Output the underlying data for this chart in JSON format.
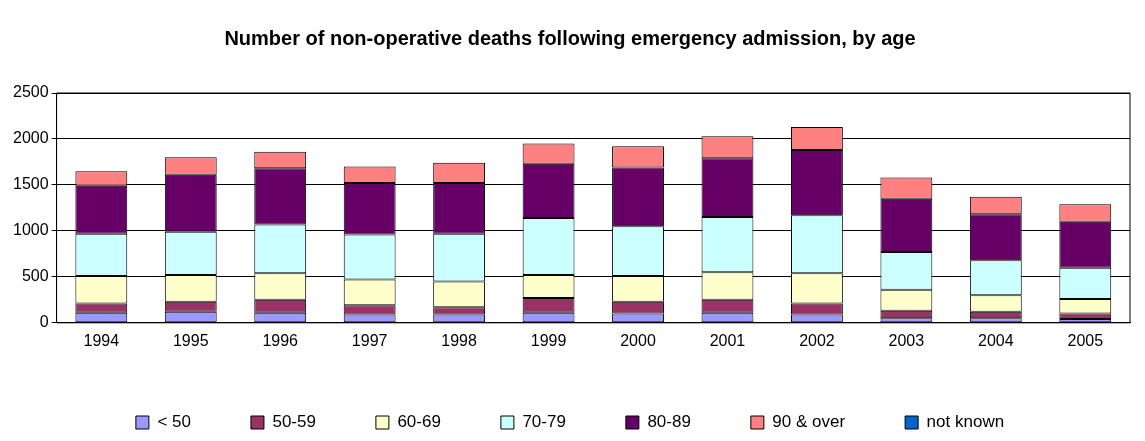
{
  "chart_data": {
    "type": "bar",
    "title": "Number of non-operative deaths following emergency admission, by age",
    "stacked": true,
    "categories": [
      "1994",
      "1995",
      "1996",
      "1997",
      "1998",
      "1999",
      "2000",
      "2001",
      "2002",
      "2003",
      "2004",
      "2005"
    ],
    "series": [
      {
        "name": "< 50",
        "color": "#9999ff",
        "values": [
          110,
          120,
          110,
          90,
          90,
          110,
          100,
          110,
          90,
          50,
          50,
          40
        ]
      },
      {
        "name": "50-59",
        "color": "#993366",
        "values": [
          100,
          110,
          140,
          100,
          80,
          160,
          130,
          140,
          120,
          80,
          70,
          60
        ]
      },
      {
        "name": "60-69",
        "color": "#ffffcc",
        "values": [
          300,
          290,
          290,
          280,
          280,
          250,
          280,
          300,
          330,
          230,
          180,
          160
        ]
      },
      {
        "name": "70-79",
        "color": "#ccffff",
        "values": [
          460,
          470,
          530,
          490,
          520,
          620,
          540,
          600,
          630,
          410,
          380,
          340
        ]
      },
      {
        "name": "80-89",
        "color": "#660066",
        "values": [
          520,
          620,
          610,
          560,
          550,
          590,
          640,
          640,
          710,
          580,
          500,
          500
        ]
      },
      {
        "name": "90 & over",
        "color": "#ff8080",
        "values": [
          160,
          190,
          180,
          180,
          220,
          220,
          230,
          240,
          250,
          230,
          190,
          190
        ]
      },
      {
        "name": "not known",
        "color": "#0066cc",
        "values": [
          0,
          0,
          0,
          0,
          0,
          0,
          0,
          0,
          0,
          0,
          0,
          0
        ]
      }
    ],
    "ylim": [
      0,
      2500
    ],
    "yticks": [
      0,
      500,
      1000,
      1500,
      2000,
      2500
    ],
    "grid": "y",
    "legend": "bottom"
  }
}
